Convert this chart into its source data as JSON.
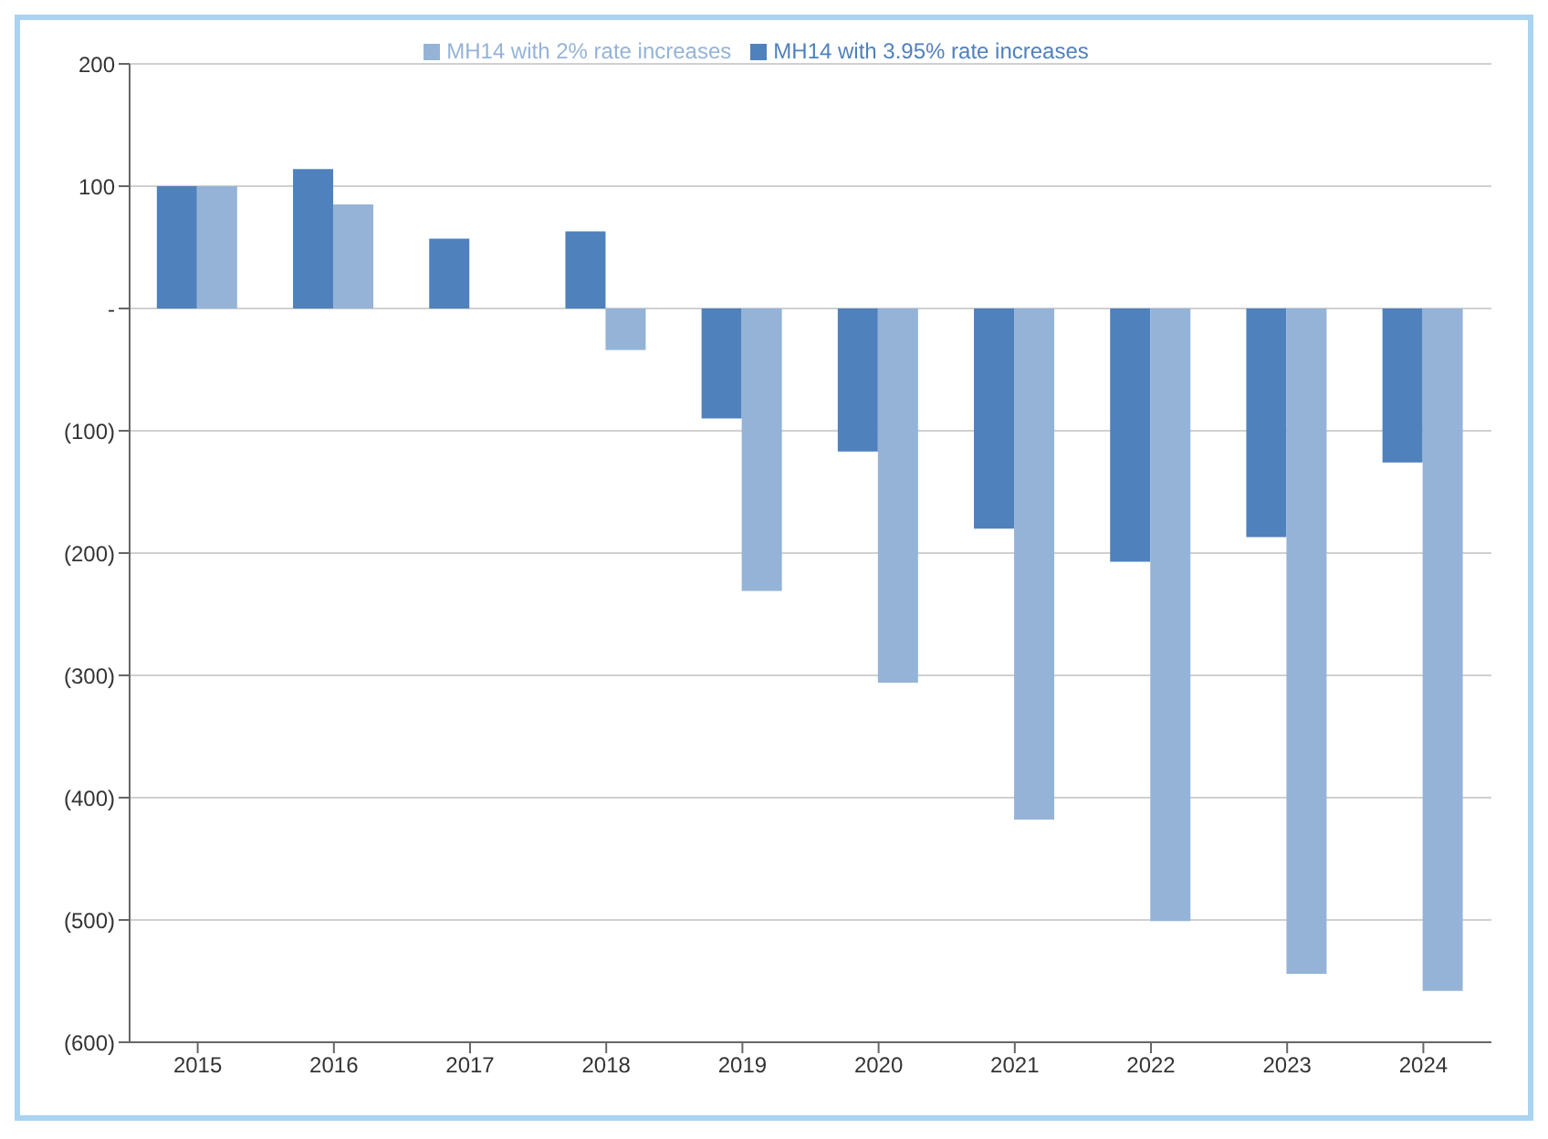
{
  "chart_data": {
    "type": "bar",
    "categories": [
      "2015",
      "2016",
      "2017",
      "2018",
      "2019",
      "2020",
      "2021",
      "2022",
      "2023",
      "2024"
    ],
    "series": [
      {
        "name": "MH14 with 3.95% rate increases",
        "color": "#4f81bd",
        "values": [
          100,
          114,
          57,
          63,
          -90,
          -117,
          -180,
          -207,
          -187,
          -126
        ]
      },
      {
        "name": "MH14 with 2% rate increases",
        "color": "#95b3d7",
        "values": [
          100,
          85,
          0,
          -34,
          -231,
          -306,
          -418,
          -501,
          -544,
          -558
        ]
      }
    ],
    "ylim": [
      -600,
      200
    ],
    "yticks": [
      {
        "value": -600,
        "label": "(600)"
      },
      {
        "value": -500,
        "label": "(500)"
      },
      {
        "value": -400,
        "label": "(400)"
      },
      {
        "value": -300,
        "label": "(300)"
      },
      {
        "value": -200,
        "label": "(200)"
      },
      {
        "value": -100,
        "label": "(100)"
      },
      {
        "value": 0,
        "label": "-"
      },
      100,
      200
    ],
    "grid": "y",
    "legend": "top"
  }
}
